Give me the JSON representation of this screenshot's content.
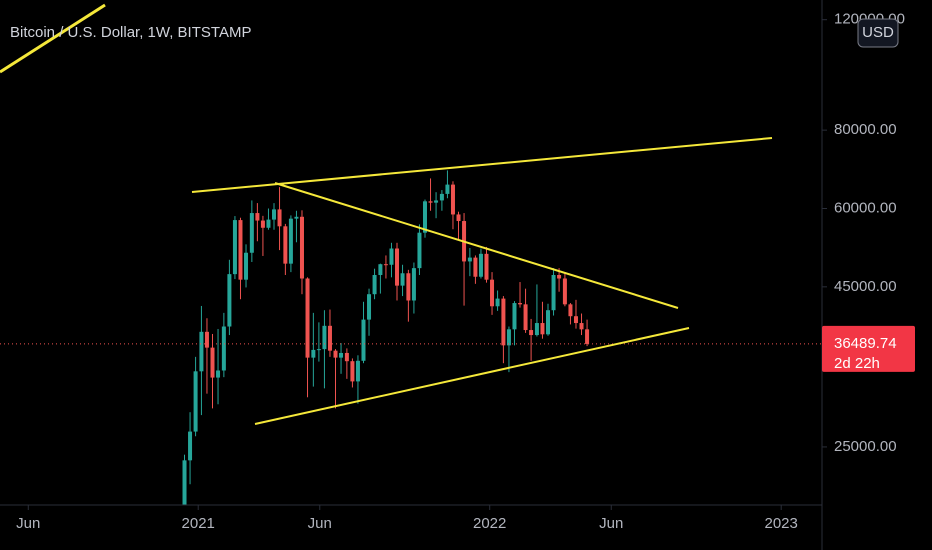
{
  "chart_data": {
    "type": "candlestick",
    "title": "Bitcoin / U.S. Dollar, 1W, BITSTAMP",
    "currency": "USD",
    "last_price": 36489.74,
    "countdown": "2d 22h",
    "log_scale": true,
    "grid": false,
    "up_color": "#26a69a",
    "down_color": "#ef5350",
    "ylim": [
      20200,
      129000
    ],
    "yticks": [
      {
        "value": 120000,
        "label": "120000.00"
      },
      {
        "value": 80000,
        "label": "80000.00"
      },
      {
        "value": 60000,
        "label": "60000.00"
      },
      {
        "value": 45000,
        "label": "45000.00"
      },
      {
        "value": 25000,
        "label": "25000.00"
      }
    ],
    "xlim": [
      2020.32,
      2023.14
    ],
    "xticks": [
      {
        "value": 2020.417,
        "label": "Jun"
      },
      {
        "value": 2021,
        "label": "2021"
      },
      {
        "value": 2021.417,
        "label": "Jun"
      },
      {
        "value": 2022,
        "label": "2022"
      },
      {
        "value": 2022.417,
        "label": "Jun"
      },
      {
        "value": 2023,
        "label": "2023"
      }
    ],
    "x": [
      2020.953,
      2020.972,
      2020.991,
      2021.011,
      2021.03,
      2021.049,
      2021.068,
      2021.088,
      2021.107,
      2021.126,
      2021.145,
      2021.164,
      2021.184,
      2021.203,
      2021.222,
      2021.241,
      2021.26,
      2021.279,
      2021.299,
      2021.318,
      2021.337,
      2021.356,
      2021.375,
      2021.395,
      2021.414,
      2021.433,
      2021.452,
      2021.471,
      2021.49,
      2021.51,
      2021.529,
      2021.548,
      2021.567,
      2021.586,
      2021.605,
      2021.625,
      2021.644,
      2021.663,
      2021.682,
      2021.701,
      2021.721,
      2021.74,
      2021.759,
      2021.778,
      2021.797,
      2021.816,
      2021.836,
      2021.855,
      2021.874,
      2021.893,
      2021.912,
      2021.932,
      2021.951,
      2021.97,
      2021.989,
      2022.008,
      2022.027,
      2022.047,
      2022.066,
      2022.085,
      2022.104,
      2022.123,
      2022.142,
      2022.162,
      2022.181,
      2022.2,
      2022.219,
      2022.238,
      2022.258,
      2022.277,
      2022.296,
      2022.315,
      2022.334
    ],
    "open": [
      19250,
      23800,
      26450,
      33000,
      38150,
      36000,
      32250,
      33100,
      38900,
      47150,
      57500,
      46200,
      51000,
      59000,
      57400,
      55900,
      57600,
      59800,
      56200,
      49000,
      57800,
      58200,
      46400,
      34700,
      35700,
      35800,
      39000,
      35600,
      34700,
      35300,
      34250,
      31800,
      34300,
      39900,
      43800,
      47000,
      48900,
      48800,
      51800,
      45200,
      47300,
      42800,
      48200,
      54900,
      61600,
      61300,
      61800,
      63300,
      65500,
      58700,
      57300,
      49400,
      50100,
      46700,
      50800,
      46200,
      41900,
      43100,
      36300,
      38500,
      42400,
      42200,
      38400,
      37700,
      39400,
      37800,
      41300,
      47000,
      46400,
      42200,
      40400,
      39400,
      38500
    ],
    "high": [
      24300,
      28400,
      34800,
      41950,
      40100,
      37850,
      38550,
      40900,
      49700,
      58350,
      58000,
      52600,
      61800,
      61200,
      58400,
      60000,
      61200,
      64900,
      56700,
      58500,
      59500,
      59600,
      46600,
      40900,
      39500,
      41300,
      41400,
      35800,
      36600,
      35900,
      34600,
      35000,
      42600,
      44700,
      48100,
      49000,
      50500,
      52900,
      52900,
      48800,
      47900,
      49200,
      56600,
      62000,
      67000,
      63700,
      64200,
      69000,
      66300,
      59300,
      59000,
      51900,
      50500,
      51800,
      52100,
      47500,
      44400,
      43500,
      38900,
      42700,
      45800,
      44700,
      40000,
      45400,
      42600,
      42300,
      48200,
      48200,
      47500,
      42400,
      42900,
      40800,
      39900
    ],
    "low": [
      19000,
      21800,
      26000,
      28100,
      30400,
      28800,
      29240,
      32300,
      37700,
      46300,
      43000,
      44900,
      49300,
      53200,
      50400,
      55500,
      55500,
      51500,
      47000,
      47500,
      53000,
      43800,
      30000,
      31200,
      34200,
      31000,
      34800,
      28800,
      32700,
      32100,
      31100,
      29300,
      34000,
      37600,
      43000,
      43900,
      46400,
      46600,
      42800,
      43500,
      39600,
      40800,
      47000,
      53900,
      59500,
      57900,
      59500,
      62300,
      55600,
      53600,
      42000,
      46800,
      45500,
      46400,
      45700,
      40600,
      41200,
      34000,
      32900,
      36300,
      41700,
      38000,
      34300,
      37500,
      37200,
      37600,
      40500,
      44200,
      41900,
      39200,
      38600,
      37700,
      36200
    ],
    "close": [
      23800,
      26450,
      33000,
      38150,
      36000,
      32250,
      33100,
      38900,
      47150,
      57500,
      46200,
      51000,
      59000,
      57400,
      55900,
      57600,
      59800,
      56200,
      49000,
      57800,
      58200,
      46400,
      34700,
      35700,
      35800,
      39000,
      35600,
      34700,
      35300,
      34250,
      31800,
      34300,
      39900,
      43800,
      47000,
      48900,
      48800,
      51800,
      45200,
      47300,
      42800,
      48200,
      54900,
      61600,
      61300,
      61800,
      63300,
      65500,
      58700,
      57300,
      49400,
      50100,
      46700,
      50800,
      46200,
      41900,
      43100,
      36300,
      38500,
      42400,
      42200,
      38400,
      37700,
      39400,
      37800,
      41300,
      47000,
      46400,
      42200,
      40400,
      39400,
      38500,
      36489.74
    ]
  }
}
